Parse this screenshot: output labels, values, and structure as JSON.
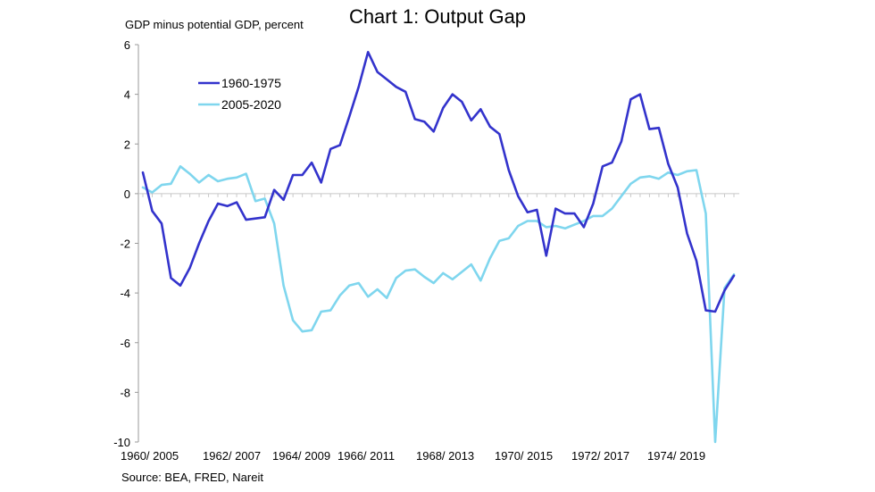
{
  "chart_data": {
    "type": "line",
    "title": "Chart 1: Output Gap",
    "ylabel": "GDP minus potential GDP, percent",
    "xlabel": "",
    "source": "Source: BEA, FRED, Nareit",
    "ylim": [
      -10,
      6
    ],
    "yticks": [
      6,
      4,
      2,
      0,
      -2,
      -4,
      -6,
      -8,
      -10
    ],
    "ytick_labels": [
      "6",
      "4",
      "2",
      "0",
      "-2",
      "-4",
      "-6",
      "-8",
      "-10"
    ],
    "xtick_labels": [
      "1960/ 2005",
      "1962/ 2007",
      "1964/ 2009",
      "1966/ 2011",
      "1968/ 2013",
      "1970/ 2015",
      "1972/ 2017",
      "1974/ 2019"
    ],
    "points_per_series": 64,
    "legend_position": "upper-left",
    "series": [
      {
        "name": "1960-1975",
        "color": "#3333cc",
        "values": [
          0.85,
          -0.7,
          -1.2,
          -3.4,
          -3.7,
          -3.0,
          -2.0,
          -1.1,
          -0.4,
          -0.5,
          -0.35,
          -1.05,
          -1.0,
          -0.95,
          0.15,
          -0.25,
          0.75,
          0.75,
          1.25,
          0.45,
          1.8,
          1.95,
          3.1,
          4.3,
          5.7,
          4.9,
          4.6,
          4.3,
          4.1,
          3.0,
          2.9,
          2.5,
          3.45,
          4.0,
          3.7,
          2.95,
          3.4,
          2.7,
          2.4,
          0.95,
          -0.1,
          -0.75,
          -0.65,
          -2.5,
          -0.6,
          -0.8,
          -0.8,
          -1.35,
          -0.4,
          1.1,
          1.25,
          2.1,
          3.8,
          4.0,
          2.6,
          2.65,
          1.2,
          0.25,
          -1.6,
          -2.7,
          -4.7,
          -4.75,
          -3.9,
          -3.3
        ]
      },
      {
        "name": "2005-2020",
        "color": "#7fd6ee",
        "values": [
          0.25,
          0.05,
          0.35,
          0.4,
          1.1,
          0.8,
          0.45,
          0.75,
          0.5,
          0.6,
          0.65,
          0.8,
          -0.3,
          -0.2,
          -1.2,
          -3.7,
          -5.1,
          -5.55,
          -5.5,
          -4.75,
          -4.7,
          -4.1,
          -3.7,
          -3.6,
          -4.15,
          -3.85,
          -4.2,
          -3.4,
          -3.1,
          -3.05,
          -3.35,
          -3.6,
          -3.2,
          -3.45,
          -3.15,
          -2.85,
          -3.5,
          -2.6,
          -1.9,
          -1.8,
          -1.3,
          -1.1,
          -1.1,
          -1.35,
          -1.3,
          -1.4,
          -1.25,
          -1.1,
          -0.9,
          -0.9,
          -0.6,
          -0.1,
          0.4,
          0.65,
          0.7,
          0.6,
          0.85,
          0.75,
          0.9,
          0.95,
          -0.8,
          -10.0,
          -3.8,
          -3.25
        ]
      }
    ]
  }
}
